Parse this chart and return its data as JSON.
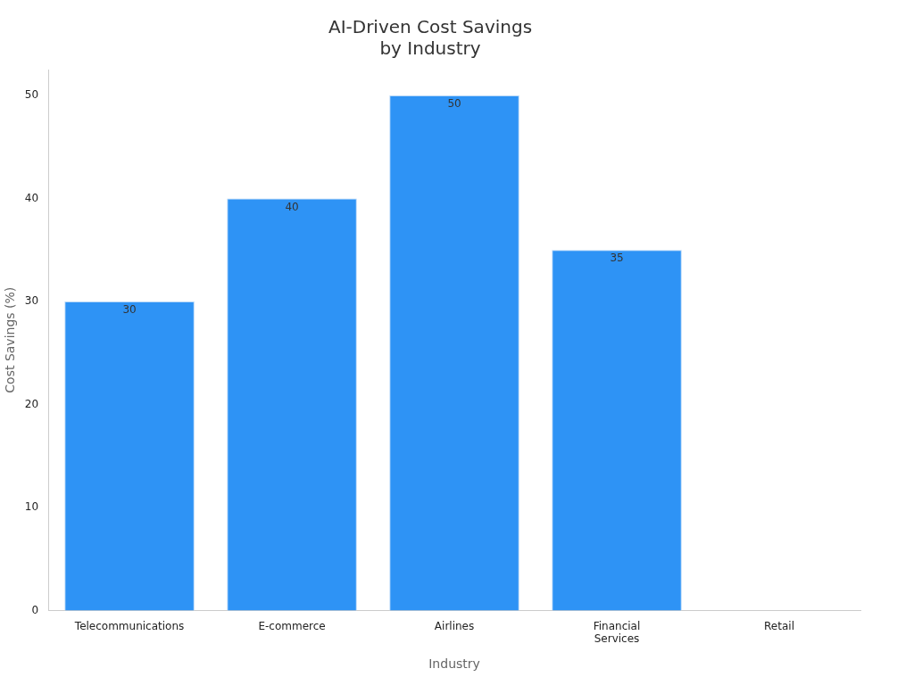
{
  "chart_data": {
    "type": "bar",
    "title": "AI-Driven Cost Savings\nby Industry",
    "xlabel": "Industry",
    "ylabel": "Cost Savings (%)",
    "categories": [
      "Telecommunications",
      "E-commerce",
      "Airlines",
      "Financial Services",
      "Retail"
    ],
    "values": [
      30,
      40,
      50,
      35,
      null
    ],
    "color": "#2e93f5",
    "ylim": [
      0,
      52.5
    ],
    "yticks": [
      0,
      10,
      20,
      30,
      40,
      50
    ],
    "grid": false,
    "legend": false,
    "data_labels": true
  }
}
